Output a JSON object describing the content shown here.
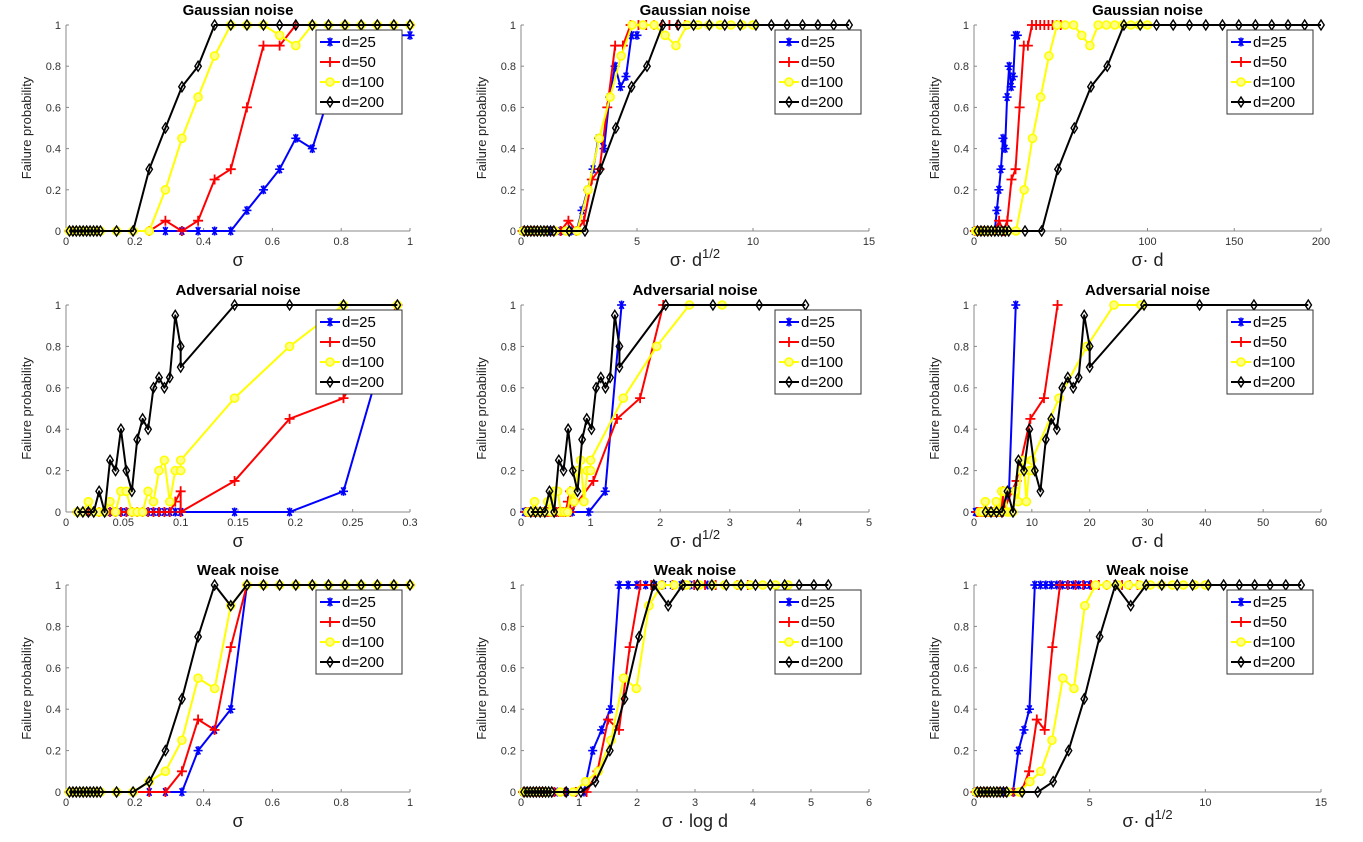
{
  "chart_data": [
    {
      "type": "line",
      "row_title": "Gaussian noise",
      "ylabel": "Failure probability",
      "ylim": [
        0,
        1
      ],
      "yticks": [
        "0",
        "0.2",
        "0.4",
        "0.6",
        "0.8",
        "1"
      ],
      "sigma": [
        0.01,
        0.02,
        0.03,
        0.04,
        0.05,
        0.06,
        0.07,
        0.08,
        0.09,
        0.1,
        0.147,
        0.195,
        0.242,
        0.289,
        0.337,
        0.384,
        0.432,
        0.479,
        0.526,
        0.574,
        0.621,
        0.668,
        0.716,
        0.763,
        0.811,
        0.858,
        0.905,
        0.953,
        1.0
      ],
      "series": [
        {
          "name": "d=25",
          "d": 25,
          "color": "#0000ff",
          "marker": "asterisk",
          "values": [
            0,
            0,
            0,
            0,
            0,
            0,
            0,
            0,
            0,
            0,
            0,
            0,
            0,
            0,
            0,
            0,
            0,
            0,
            0.1,
            0.2,
            0.3,
            0.45,
            0.4,
            0.65,
            0.8,
            0.7,
            0.75,
            0.95,
            0.95
          ]
        },
        {
          "name": "d=50",
          "d": 50,
          "color": "#ff0000",
          "marker": "plus",
          "values": [
            0,
            0,
            0,
            0,
            0,
            0,
            0,
            0,
            0,
            0,
            0,
            0,
            0,
            0.05,
            0,
            0.05,
            0.25,
            0.3,
            0.6,
            0.9,
            0.9,
            1,
            1,
            1,
            1,
            1,
            1,
            1,
            1
          ]
        },
        {
          "name": "d=100",
          "d": 100,
          "color": "#ffff00",
          "marker": "circle",
          "values": [
            0,
            0,
            0,
            0,
            0,
            0,
            0,
            0,
            0,
            0,
            0,
            0,
            0,
            0.2,
            0.45,
            0.65,
            0.85,
            1,
            1,
            1,
            0.95,
            0.9,
            1,
            1,
            1,
            1,
            1,
            1,
            1
          ]
        },
        {
          "name": "d=200",
          "d": 200,
          "color": "#000000",
          "marker": "diamond",
          "values": [
            0,
            0,
            0,
            0,
            0,
            0,
            0,
            0,
            0,
            0,
            0,
            0,
            0.3,
            0.5,
            0.7,
            0.8,
            1,
            1,
            1,
            1,
            1,
            1,
            1,
            1,
            1,
            1,
            1,
            1,
            1
          ]
        }
      ],
      "panels": [
        {
          "x_transform": "sigma",
          "xlabel": {
            "base": "σ",
            "sup": ""
          },
          "xlim": [
            0,
            1
          ],
          "xticks": [
            "0",
            "0.2",
            "0.4",
            "0.6",
            "0.8",
            "1"
          ]
        },
        {
          "x_transform": "sigma*sqrt(d)",
          "xlabel": {
            "base": "σ· d",
            "sup": "1/2"
          },
          "xlim": [
            0,
            15
          ],
          "xticks": [
            "0",
            "5",
            "10",
            "15"
          ]
        },
        {
          "x_transform": "sigma*d",
          "xlabel": {
            "base": "σ· d",
            "sup": ""
          },
          "xlim": [
            0,
            200
          ],
          "xticks": [
            "0",
            "50",
            "100",
            "150",
            "200"
          ]
        }
      ]
    },
    {
      "type": "line",
      "row_title": "Adversarial noise",
      "ylabel": "Failure probability",
      "ylim": [
        0,
        1
      ],
      "yticks": [
        "0",
        "0.2",
        "0.4",
        "0.6",
        "0.8",
        "1"
      ],
      "sigma": [
        0.01,
        0.0147,
        0.0195,
        0.0242,
        0.0289,
        0.0337,
        0.0384,
        0.0432,
        0.0479,
        0.0526,
        0.0574,
        0.0621,
        0.0668,
        0.0716,
        0.0763,
        0.0811,
        0.0858,
        0.0905,
        0.0953,
        0.1,
        0.1,
        0.147,
        0.195,
        0.242,
        0.289
      ],
      "series": [
        {
          "name": "d=25",
          "d": 25,
          "color": "#0000ff",
          "marker": "asterisk",
          "values": [
            0,
            0,
            0,
            0,
            0,
            0,
            0,
            0,
            0,
            0,
            0,
            0,
            0,
            0,
            0,
            0,
            0,
            0,
            0,
            0,
            0,
            0,
            0,
            0.1,
            1
          ]
        },
        {
          "name": "d=50",
          "d": 50,
          "color": "#ff0000",
          "marker": "plus",
          "values": [
            0,
            0,
            0,
            0,
            0,
            0,
            0,
            0,
            0,
            0,
            0,
            0,
            0,
            0,
            0,
            0,
            0,
            0,
            0.05,
            0.1,
            0,
            0.15,
            0.45,
            0.55,
            1
          ]
        },
        {
          "name": "d=100",
          "d": 100,
          "color": "#ffff00",
          "marker": "circle",
          "values": [
            0,
            0,
            0.05,
            0,
            0,
            0,
            0.05,
            0,
            0.1,
            0.1,
            0,
            0,
            0,
            0.1,
            0.05,
            0.2,
            0.25,
            0.05,
            0.2,
            0.2,
            0.25,
            0.55,
            0.8,
            1,
            1
          ]
        },
        {
          "name": "d=200",
          "d": 200,
          "color": "#000000",
          "marker": "diamond",
          "values": [
            0,
            0,
            0,
            0,
            0.1,
            0,
            0.25,
            0.2,
            0.4,
            0.2,
            0.1,
            0.35,
            0.45,
            0.4,
            0.6,
            0.65,
            0.6,
            0.65,
            0.95,
            0.8,
            0.7,
            1,
            1,
            1,
            1
          ]
        }
      ],
      "panels": [
        {
          "x_transform": "sigma",
          "xlabel": {
            "base": "σ",
            "sup": ""
          },
          "xlim": [
            0,
            0.3
          ],
          "xticks": [
            "0",
            "0.05",
            "0.1",
            "0.15",
            "0.2",
            "0.25",
            "0.3"
          ]
        },
        {
          "x_transform": "sigma*sqrt(d)",
          "xlabel": {
            "base": "σ· d",
            "sup": "1/2"
          },
          "xlim": [
            0,
            5
          ],
          "xticks": [
            "0",
            "1",
            "2",
            "3",
            "4",
            "5"
          ]
        },
        {
          "x_transform": "sigma*d",
          "xlabel": {
            "base": "σ· d",
            "sup": ""
          },
          "xlim": [
            0,
            60
          ],
          "xticks": [
            "0",
            "10",
            "20",
            "30",
            "40",
            "50",
            "60"
          ]
        }
      ]
    },
    {
      "type": "line",
      "row_title": "Weak noise",
      "ylabel": "Failure probability",
      "ylim": [
        0,
        1
      ],
      "yticks": [
        "0",
        "0.2",
        "0.4",
        "0.6",
        "0.8",
        "1"
      ],
      "sigma": [
        0.01,
        0.02,
        0.03,
        0.04,
        0.05,
        0.06,
        0.07,
        0.08,
        0.09,
        0.1,
        0.147,
        0.195,
        0.242,
        0.289,
        0.337,
        0.384,
        0.432,
        0.479,
        0.526,
        0.574,
        0.621,
        0.668,
        0.716,
        0.763,
        0.811,
        0.858,
        0.905,
        0.953,
        1.0
      ],
      "series": [
        {
          "name": "d=25",
          "d": 25,
          "color": "#0000ff",
          "marker": "asterisk",
          "values": [
            0,
            0,
            0,
            0,
            0,
            0,
            0,
            0,
            0,
            0,
            0,
            0,
            0,
            0,
            0,
            0.2,
            0.3,
            0.4,
            1,
            1,
            1,
            1,
            1,
            1,
            1,
            1,
            1,
            1,
            1
          ]
        },
        {
          "name": "d=50",
          "d": 50,
          "color": "#ff0000",
          "marker": "plus",
          "values": [
            0,
            0,
            0,
            0,
            0,
            0,
            0,
            0,
            0,
            0,
            0,
            0,
            0,
            0,
            0.1,
            0.35,
            0.3,
            0.7,
            1,
            1,
            1,
            1,
            1,
            1,
            1,
            1,
            1,
            1,
            1
          ]
        },
        {
          "name": "d=100",
          "d": 100,
          "color": "#ffff00",
          "marker": "circle",
          "values": [
            0,
            0,
            0,
            0,
            0,
            0,
            0,
            0,
            0,
            0,
            0,
            0,
            0.05,
            0.1,
            0.25,
            0.55,
            0.5,
            0.9,
            1,
            1,
            1,
            1,
            1,
            1,
            1,
            1,
            1,
            1,
            1
          ]
        },
        {
          "name": "d=200",
          "d": 200,
          "color": "#000000",
          "marker": "diamond",
          "values": [
            0,
            0,
            0,
            0,
            0,
            0,
            0,
            0,
            0,
            0,
            0,
            0,
            0.05,
            0.2,
            0.45,
            0.75,
            1,
            0.9,
            1,
            1,
            1,
            1,
            1,
            1,
            1,
            1,
            1,
            1,
            1
          ]
        }
      ],
      "panels": [
        {
          "x_transform": "sigma",
          "xlabel": {
            "base": "σ",
            "sup": ""
          },
          "xlim": [
            0,
            1
          ],
          "xticks": [
            "0",
            "0.2",
            "0.4",
            "0.6",
            "0.8",
            "1"
          ]
        },
        {
          "x_transform": "sigma*log(d)",
          "xlabel": {
            "base": "σ · log d",
            "sup": ""
          },
          "xlim": [
            0,
            6
          ],
          "xticks": [
            "0",
            "1",
            "2",
            "3",
            "4",
            "5",
            "6"
          ]
        },
        {
          "x_transform": "sigma*sqrt(d)",
          "xlabel": {
            "base": "σ· d",
            "sup": "1/2"
          },
          "xlim": [
            0,
            15
          ],
          "xticks": [
            "0",
            "5",
            "10",
            "15"
          ]
        }
      ]
    }
  ]
}
